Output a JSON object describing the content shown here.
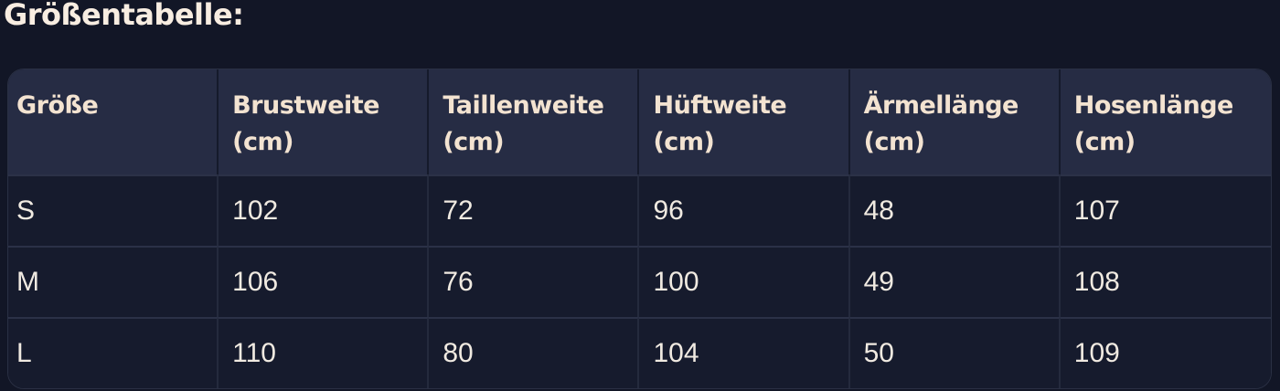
{
  "page": {
    "title": "Größentabelle:"
  },
  "table": {
    "headers": [
      {
        "label": "Größe",
        "unit": ""
      },
      {
        "label": "Brustweite",
        "unit": "(cm)"
      },
      {
        "label": "Taillenweite",
        "unit": "(cm)"
      },
      {
        "label": "Hüftweite",
        "unit": "(cm)"
      },
      {
        "label": "Ärmellänge",
        "unit": "(cm)"
      },
      {
        "label": "Hosenlänge",
        "unit": "(cm)"
      }
    ],
    "rows": [
      {
        "size": "S",
        "values": [
          "102",
          "72",
          "96",
          "48",
          "107"
        ]
      },
      {
        "size": "M",
        "values": [
          "106",
          "76",
          "100",
          "49",
          "108"
        ]
      },
      {
        "size": "L",
        "values": [
          "110",
          "80",
          "104",
          "50",
          "109"
        ]
      }
    ]
  },
  "colors": {
    "page_bg": "#121626",
    "header_bg": "#262c44",
    "row_bg": "#161b2d",
    "divider_light": "#2b3147",
    "divider_dark": "#151a2b",
    "title_color": "#f8ede1",
    "header_text": "#f3e3d1",
    "cell_text": "#f0eae1"
  }
}
